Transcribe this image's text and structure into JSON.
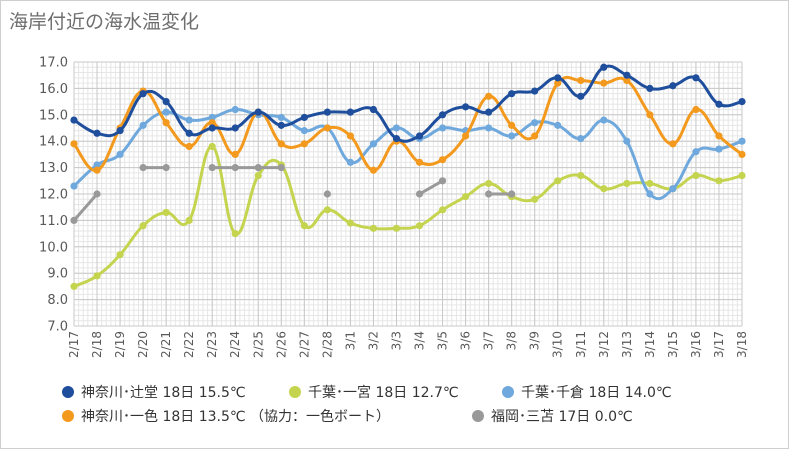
{
  "title": "海岸付近の海水温変化",
  "chart_data": {
    "type": "line",
    "title": "海岸付近の海水温変化",
    "categories": [
      "2/17",
      "2/18",
      "2/19",
      "2/20",
      "2/21",
      "2/22",
      "2/23",
      "2/24",
      "2/25",
      "2/26",
      "2/27",
      "2/28",
      "3/1",
      "3/2",
      "3/3",
      "3/4",
      "3/5",
      "3/6",
      "3/7",
      "3/8",
      "3/9",
      "3/10",
      "3/11",
      "3/12",
      "3/13",
      "3/14",
      "3/15",
      "3/16",
      "3/17",
      "3/18"
    ],
    "ylim": [
      7.0,
      17.0
    ],
    "yticks": [
      "7.0",
      "8.0",
      "9.0",
      "10.0",
      "11.0",
      "12.0",
      "13.0",
      "14.0",
      "15.0",
      "16.0",
      "17.0"
    ],
    "grid": true,
    "legend_position": "bottom",
    "series": [
      {
        "name": "神奈川･辻堂 18日 15.5℃",
        "color": "#1f4e9c",
        "values": [
          14.8,
          14.3,
          14.4,
          15.8,
          15.5,
          14.3,
          14.5,
          14.5,
          15.1,
          14.6,
          14.9,
          15.1,
          15.1,
          15.2,
          14.1,
          14.2,
          15.0,
          15.3,
          15.1,
          15.8,
          15.9,
          16.4,
          15.7,
          16.8,
          16.5,
          16.0,
          16.1,
          16.4,
          15.4,
          15.5
        ]
      },
      {
        "name": "千葉･一宮 18日 12.7℃",
        "color": "#c5d44f",
        "values": [
          8.5,
          8.9,
          9.7,
          10.8,
          11.3,
          11.0,
          13.8,
          10.5,
          12.7,
          13.1,
          10.8,
          11.4,
          10.9,
          10.7,
          10.7,
          10.8,
          11.4,
          11.9,
          12.4,
          11.9,
          11.8,
          12.5,
          12.7,
          12.2,
          12.4,
          12.4,
          12.2,
          12.7,
          12.5,
          12.7
        ]
      },
      {
        "name": "千葉･千倉 18日 14.0℃",
        "color": "#6fa8dc",
        "values": [
          12.3,
          13.1,
          13.5,
          14.6,
          15.1,
          14.8,
          14.9,
          15.2,
          15.0,
          14.9,
          14.4,
          14.5,
          13.2,
          13.9,
          14.5,
          14.1,
          14.5,
          14.4,
          14.5,
          14.2,
          14.7,
          14.6,
          14.1,
          14.8,
          14.0,
          12.0,
          12.2,
          13.6,
          13.7,
          14.0
        ]
      },
      {
        "name": "神奈川･一色 18日 13.5℃ （協力：一色ボート）",
        "color": "#f39a1e",
        "values": [
          13.9,
          12.9,
          14.5,
          15.9,
          14.7,
          13.8,
          14.7,
          13.5,
          15.1,
          13.9,
          13.9,
          14.5,
          14.2,
          12.9,
          14.0,
          13.2,
          13.3,
          14.2,
          15.7,
          14.6,
          14.2,
          16.2,
          16.3,
          16.2,
          16.3,
          15.0,
          13.9,
          15.2,
          14.2,
          13.5
        ]
      },
      {
        "name": "福岡･三苫 17日 0.0℃",
        "color": "#999999",
        "values": [
          11.0,
          12.0,
          null,
          13.0,
          13.0,
          null,
          13.0,
          13.0,
          13.0,
          13.0,
          null,
          12.0,
          null,
          null,
          null,
          12.0,
          12.5,
          null,
          12.0,
          12.0,
          null,
          null,
          null,
          null,
          null,
          null,
          null,
          null,
          null,
          null
        ]
      }
    ]
  }
}
